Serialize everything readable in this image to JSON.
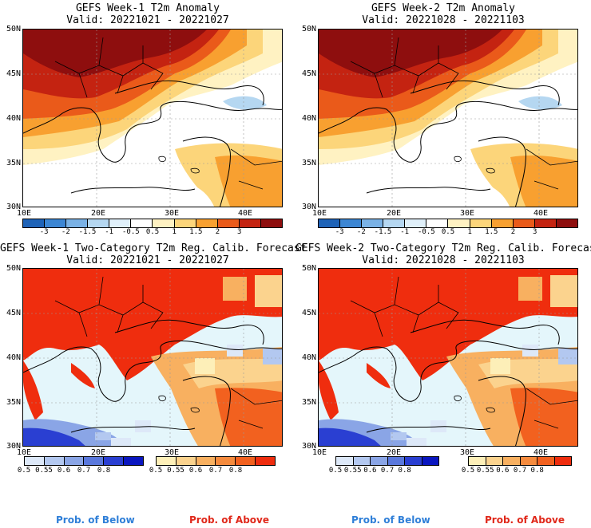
{
  "panels": [
    {
      "title": "GEFS Week-1 T2m Anomaly",
      "valid": "Valid: 20221021 - 20221027"
    },
    {
      "title": "GEFS Week-2 T2m Anomaly",
      "valid": "Valid: 20221028 - 20221103"
    },
    {
      "title": "GEFS Week-1 Two-Category T2m Reg. Calib. Forecast",
      "valid": "Valid: 20221021 - 20221027"
    },
    {
      "title": "GEFS Week-2 Two-Category T2m Reg. Calib. Forecast",
      "valid": "Valid: 20221028 - 20221103"
    }
  ],
  "axes": {
    "lat_labels": [
      "50N",
      "45N",
      "40N",
      "35N",
      "30N"
    ],
    "lon_labels": [
      "10E",
      "20E",
      "30E",
      "40E"
    ]
  },
  "anomaly_colorbar": {
    "labels": [
      "-3",
      "-2",
      "-1.5",
      "-1",
      "-0.5",
      "0.5",
      "1",
      "1.5",
      "2",
      "3"
    ],
    "colors": [
      "#1f63b8",
      "#3c86d4",
      "#7ab2e6",
      "#b5d7f1",
      "#e0f0fa",
      "#ffffff",
      "#fff2c2",
      "#fcd57a",
      "#f8a030",
      "#ea5a1a",
      "#c42311",
      "#8e0e0e"
    ]
  },
  "prob_below_colorbar": {
    "labels": [
      "0.5",
      "0.55",
      "0.6",
      "0.7",
      "0.8"
    ],
    "colors": [
      "#dde8f8",
      "#b3c8f0",
      "#8aa5e6",
      "#5a78dc",
      "#2a3fd2",
      "#0a16c0"
    ]
  },
  "prob_above_colorbar": {
    "labels": [
      "0.5",
      "0.55",
      "0.6",
      "0.7",
      "0.8"
    ],
    "colors": [
      "#fdefb8",
      "#fbd38e",
      "#f8b060",
      "#f58b3e",
      "#f2611f",
      "#ef2d0e"
    ]
  },
  "legend_text": {
    "below": "Prob. of Below",
    "above": "Prob. of Above",
    "below_color": "#2f7fd8",
    "above_color": "#e0281a"
  }
}
